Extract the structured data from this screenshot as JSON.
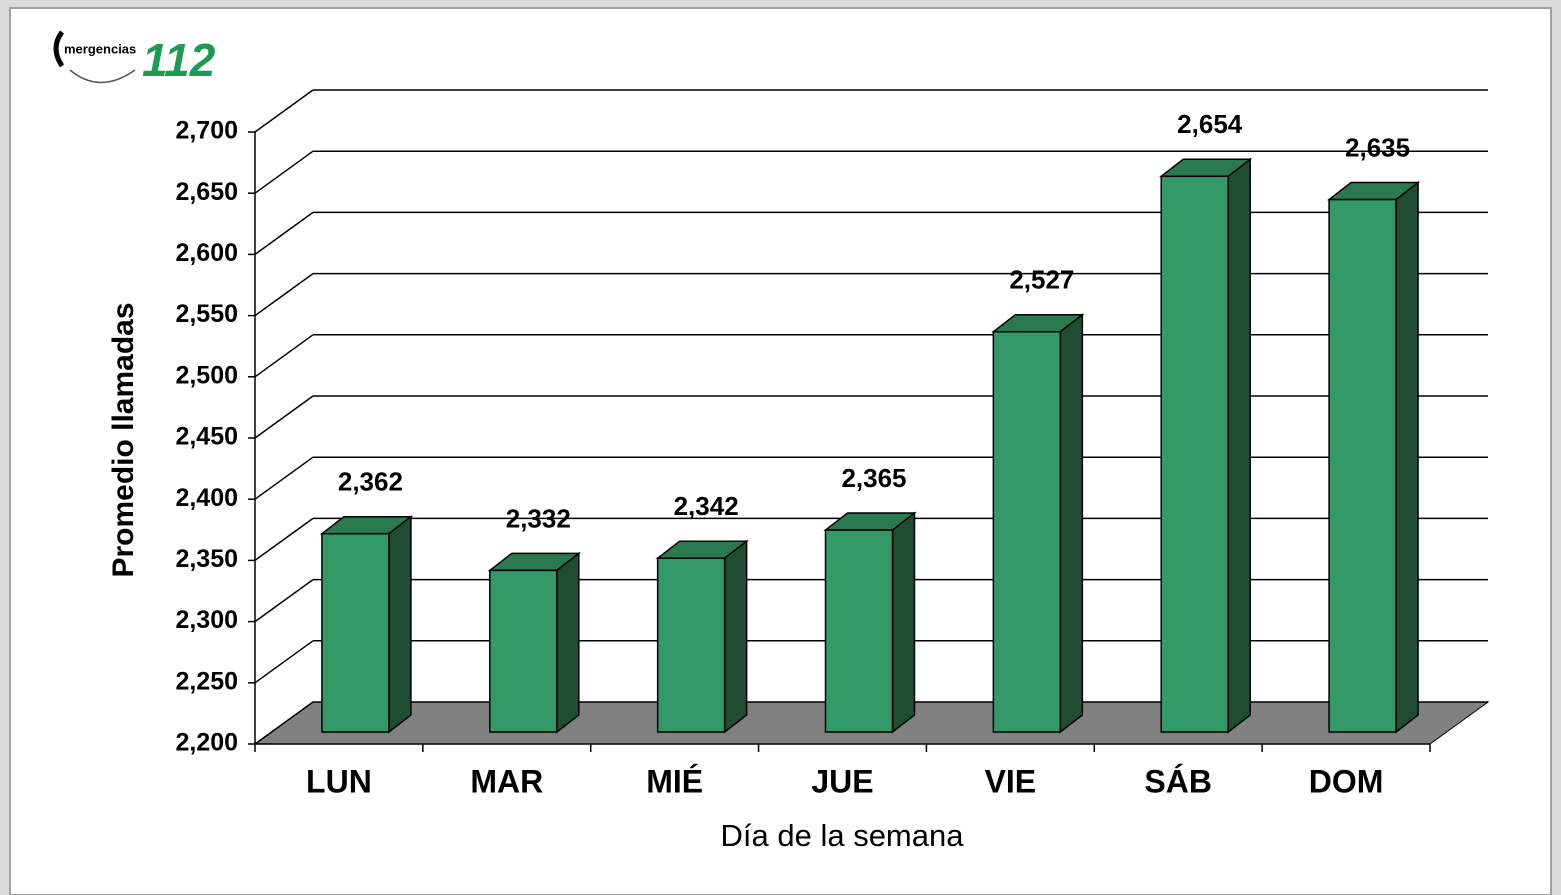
{
  "chart_data": {
    "type": "bar3d",
    "logo_text": "mergencias",
    "logo_number": "112",
    "y_label": "Promedio llamadas",
    "x_label": "Día de la semana",
    "categories": [
      "LUN",
      "MAR",
      "MIÉ",
      "JUE",
      "VIE",
      "SÁB",
      "DOM"
    ],
    "values": [
      2362,
      2332,
      2342,
      2365,
      2527,
      2654,
      2635
    ],
    "value_labels": [
      "2,362",
      "2,332",
      "2,342",
      "2,365",
      "2,527",
      "2,654",
      "2,635"
    ],
    "color": "#339966",
    "ylim": [
      2200,
      2700
    ],
    "yticks": [
      {
        "value": 2200,
        "label": "2,200"
      },
      {
        "value": 2250,
        "label": "2,250"
      },
      {
        "value": 2300,
        "label": "2,300"
      },
      {
        "value": 2350,
        "label": "2,350"
      },
      {
        "value": 2400,
        "label": "2,400"
      },
      {
        "value": 2450,
        "label": "2,450"
      },
      {
        "value": 2500,
        "label": "2,500"
      },
      {
        "value": 2550,
        "label": "2,550"
      },
      {
        "value": 2600,
        "label": "2,600"
      },
      {
        "value": 2650,
        "label": "2,650"
      },
      {
        "value": 2700,
        "label": "2,700"
      }
    ],
    "grid": true
  }
}
